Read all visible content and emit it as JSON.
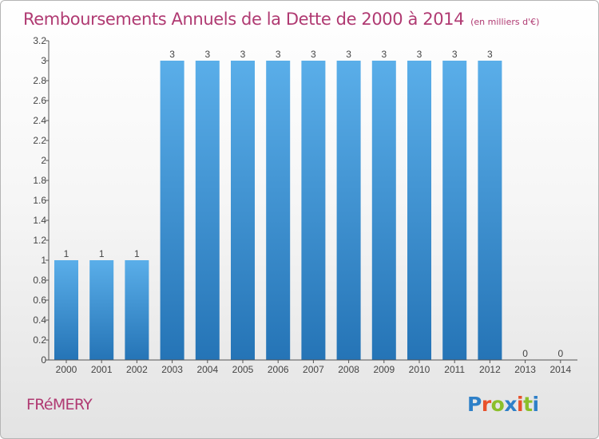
{
  "header": {
    "title": "Remboursements Annuels de la Dette de 2000 à 2014",
    "subtitle": "(en milliers d'€)"
  },
  "footer": {
    "commune": "FRéMERY",
    "logo_text": "Proxiti",
    "logo_colors": [
      "#2e80c8",
      "#e8512b",
      "#8bbf2a",
      "#2e80c8",
      "#e8512b",
      "#8bbf2a",
      "#2e80c8"
    ]
  },
  "chart_data": {
    "type": "bar",
    "categories": [
      "2000",
      "2001",
      "2002",
      "2003",
      "2004",
      "2005",
      "2006",
      "2007",
      "2008",
      "2009",
      "2010",
      "2011",
      "2012",
      "2013",
      "2014"
    ],
    "values": [
      1,
      1,
      1,
      3,
      3,
      3,
      3,
      3,
      3,
      3,
      3,
      3,
      3,
      0,
      0
    ],
    "data_labels": [
      "1",
      "1",
      "1",
      "3",
      "3",
      "3",
      "3",
      "3",
      "3",
      "3",
      "3",
      "3",
      "3",
      "0",
      "0"
    ],
    "title": "Remboursements Annuels de la Dette de 2000 à 2014",
    "subtitle": "(en milliers d'€)",
    "xlabel": "",
    "ylabel": "",
    "ylim": [
      0,
      3.2
    ],
    "yticks": [
      "0",
      "0.2",
      "0.4",
      "0.6",
      "0.8",
      "1",
      "1.2",
      "1.4",
      "1.6",
      "1.8",
      "2",
      "2.2",
      "2.4",
      "2.6",
      "2.8",
      "3",
      "3.2"
    ],
    "grid": false,
    "legend": "none",
    "bar_color": "#3c91d8",
    "bar_color_light": "#5aaee9",
    "bar_color_dark": "#2574b6",
    "axis_color": "#555555",
    "label_color": "#444444"
  }
}
